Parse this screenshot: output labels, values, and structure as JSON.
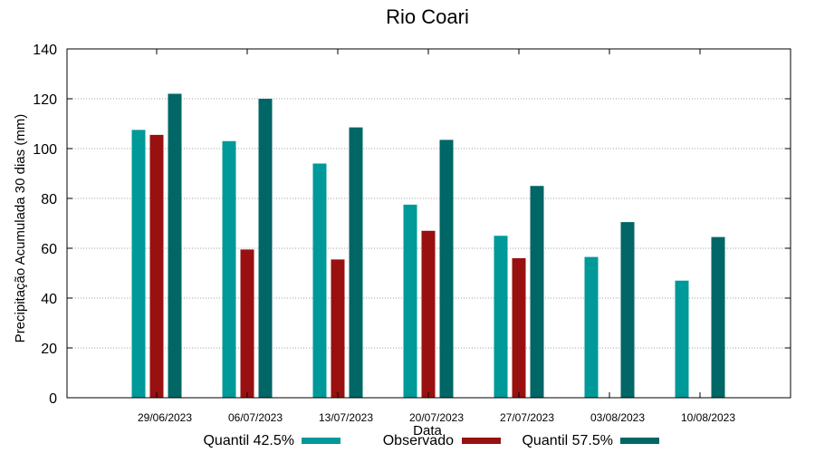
{
  "chart_data": {
    "type": "bar",
    "title": "Rio Coari",
    "xlabel": "Data",
    "ylabel": "Precipitação Acumulada 30 dias (mm)",
    "ylim": [
      0,
      140
    ],
    "yticks": [
      0,
      20,
      40,
      60,
      80,
      100,
      120,
      140
    ],
    "grid": true,
    "legend_position": "bottom",
    "categories": [
      "29/06/2023",
      "06/07/2023",
      "13/07/2023",
      "20/07/2023",
      "27/07/2023",
      "03/08/2023",
      "10/08/2023"
    ],
    "series": [
      {
        "name": "Quantil 42.5%",
        "color": "#009999",
        "values": [
          107.5,
          103,
          94,
          77.5,
          65,
          56.5,
          47
        ]
      },
      {
        "name": "Observado",
        "color": "#991010",
        "values": [
          105.5,
          59.5,
          55.5,
          67,
          56,
          null,
          null
        ]
      },
      {
        "name": "Quantil 57.5%",
        "color": "#006666",
        "values": [
          122,
          120,
          108.5,
          103.5,
          85,
          70.5,
          64.5
        ]
      }
    ]
  }
}
